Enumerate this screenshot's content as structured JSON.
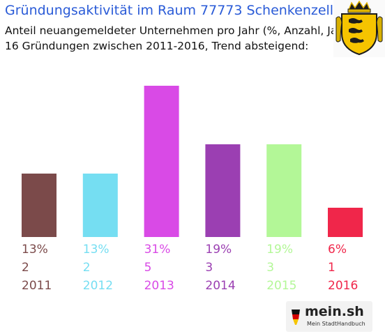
{
  "header": {
    "title": "Gründungsaktivität im Raum 77773 Schenkenzell",
    "subtitle_line1": "Anteil neuangemeldeter Unternehmen pro Jahr (%, Anzahl, Jahr)",
    "subtitle_line2": "16 Gründungen zwischen 2011-2016, Trend absteigend:"
  },
  "crest": {
    "icon": "baden-wuerttemberg-coat-of-arms-icon"
  },
  "footer": {
    "brand": "mein.sh",
    "tagline": "Mein StadtHandbuch",
    "icon": "germany-flag-icon"
  },
  "chart_data": {
    "type": "bar",
    "categories": [
      "2011",
      "2012",
      "2013",
      "2014",
      "2015",
      "2016"
    ],
    "values": [
      13,
      13,
      31,
      19,
      19,
      6
    ],
    "percent_labels": [
      "13%",
      "13%",
      "31%",
      "19%",
      "19%",
      "6%"
    ],
    "count_labels": [
      "2",
      "2",
      "5",
      "3",
      "3",
      "1"
    ],
    "counts": [
      2,
      2,
      5,
      3,
      3,
      1
    ],
    "colors": [
      "#7b4a4a",
      "#75def2",
      "#d94ae6",
      "#9b3fb2",
      "#b3f797",
      "#f0264a"
    ],
    "ylim": [
      0,
      31
    ],
    "grid": false,
    "legend": "none"
  }
}
